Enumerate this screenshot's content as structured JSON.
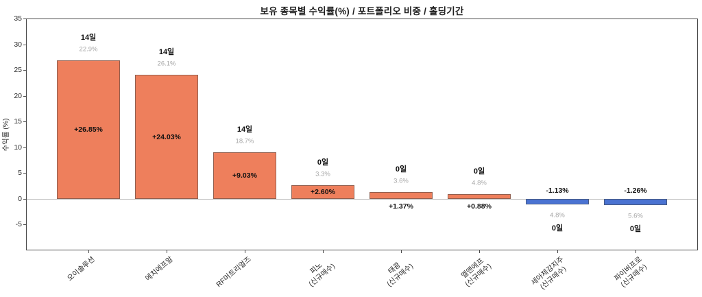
{
  "chart_data": {
    "type": "bar",
    "title": "보유 종목별 수익률(%) / 포트폴리오 비중 / 홀딩기간",
    "ylabel": "수익률 (%)",
    "xlabel": "",
    "ylim": [
      -10,
      35
    ],
    "yticks": [
      35,
      30,
      25,
      20,
      15,
      10,
      5,
      0,
      -5
    ],
    "grid": false,
    "legend": "none",
    "colors": {
      "positive_bar": "#ee7f5c",
      "negative_bar": "#4a73d2",
      "bar_edge": "#5a5a5a",
      "weight_text": "#a6a6a6",
      "value_text": "#111111"
    },
    "bars": [
      {
        "name": "오이솔루션",
        "sub": "",
        "value": 26.85,
        "value_label": "+26.85%",
        "weight_label": "22.9%",
        "days_label": "14일"
      },
      {
        "name": "에치에프알",
        "sub": "",
        "value": 24.03,
        "value_label": "+24.03%",
        "weight_label": "26.1%",
        "days_label": "14일"
      },
      {
        "name": "RF머트리얼즈",
        "sub": "",
        "value": 9.03,
        "value_label": "+9.03%",
        "weight_label": "18.7%",
        "days_label": "14일"
      },
      {
        "name": "피노",
        "sub": "(신규매수)",
        "value": 2.6,
        "value_label": "+2.60%",
        "weight_label": "3.3%",
        "days_label": "0일"
      },
      {
        "name": "태광",
        "sub": "(신규매수)",
        "value": 1.37,
        "value_label": "+1.37%",
        "weight_label": "3.6%",
        "days_label": "0일"
      },
      {
        "name": "엘앤에프",
        "sub": "(신규매수)",
        "value": 0.88,
        "value_label": "+0.88%",
        "weight_label": "4.8%",
        "days_label": "0일"
      },
      {
        "name": "세아제강지주",
        "sub": "(신규매수)",
        "value": -1.13,
        "value_label": "-1.13%",
        "weight_label": "4.8%",
        "days_label": "0일"
      },
      {
        "name": "파이버프로",
        "sub": "(신규매수)",
        "value": -1.26,
        "value_label": "-1.26%",
        "weight_label": "5.6%",
        "days_label": "0일"
      }
    ]
  }
}
